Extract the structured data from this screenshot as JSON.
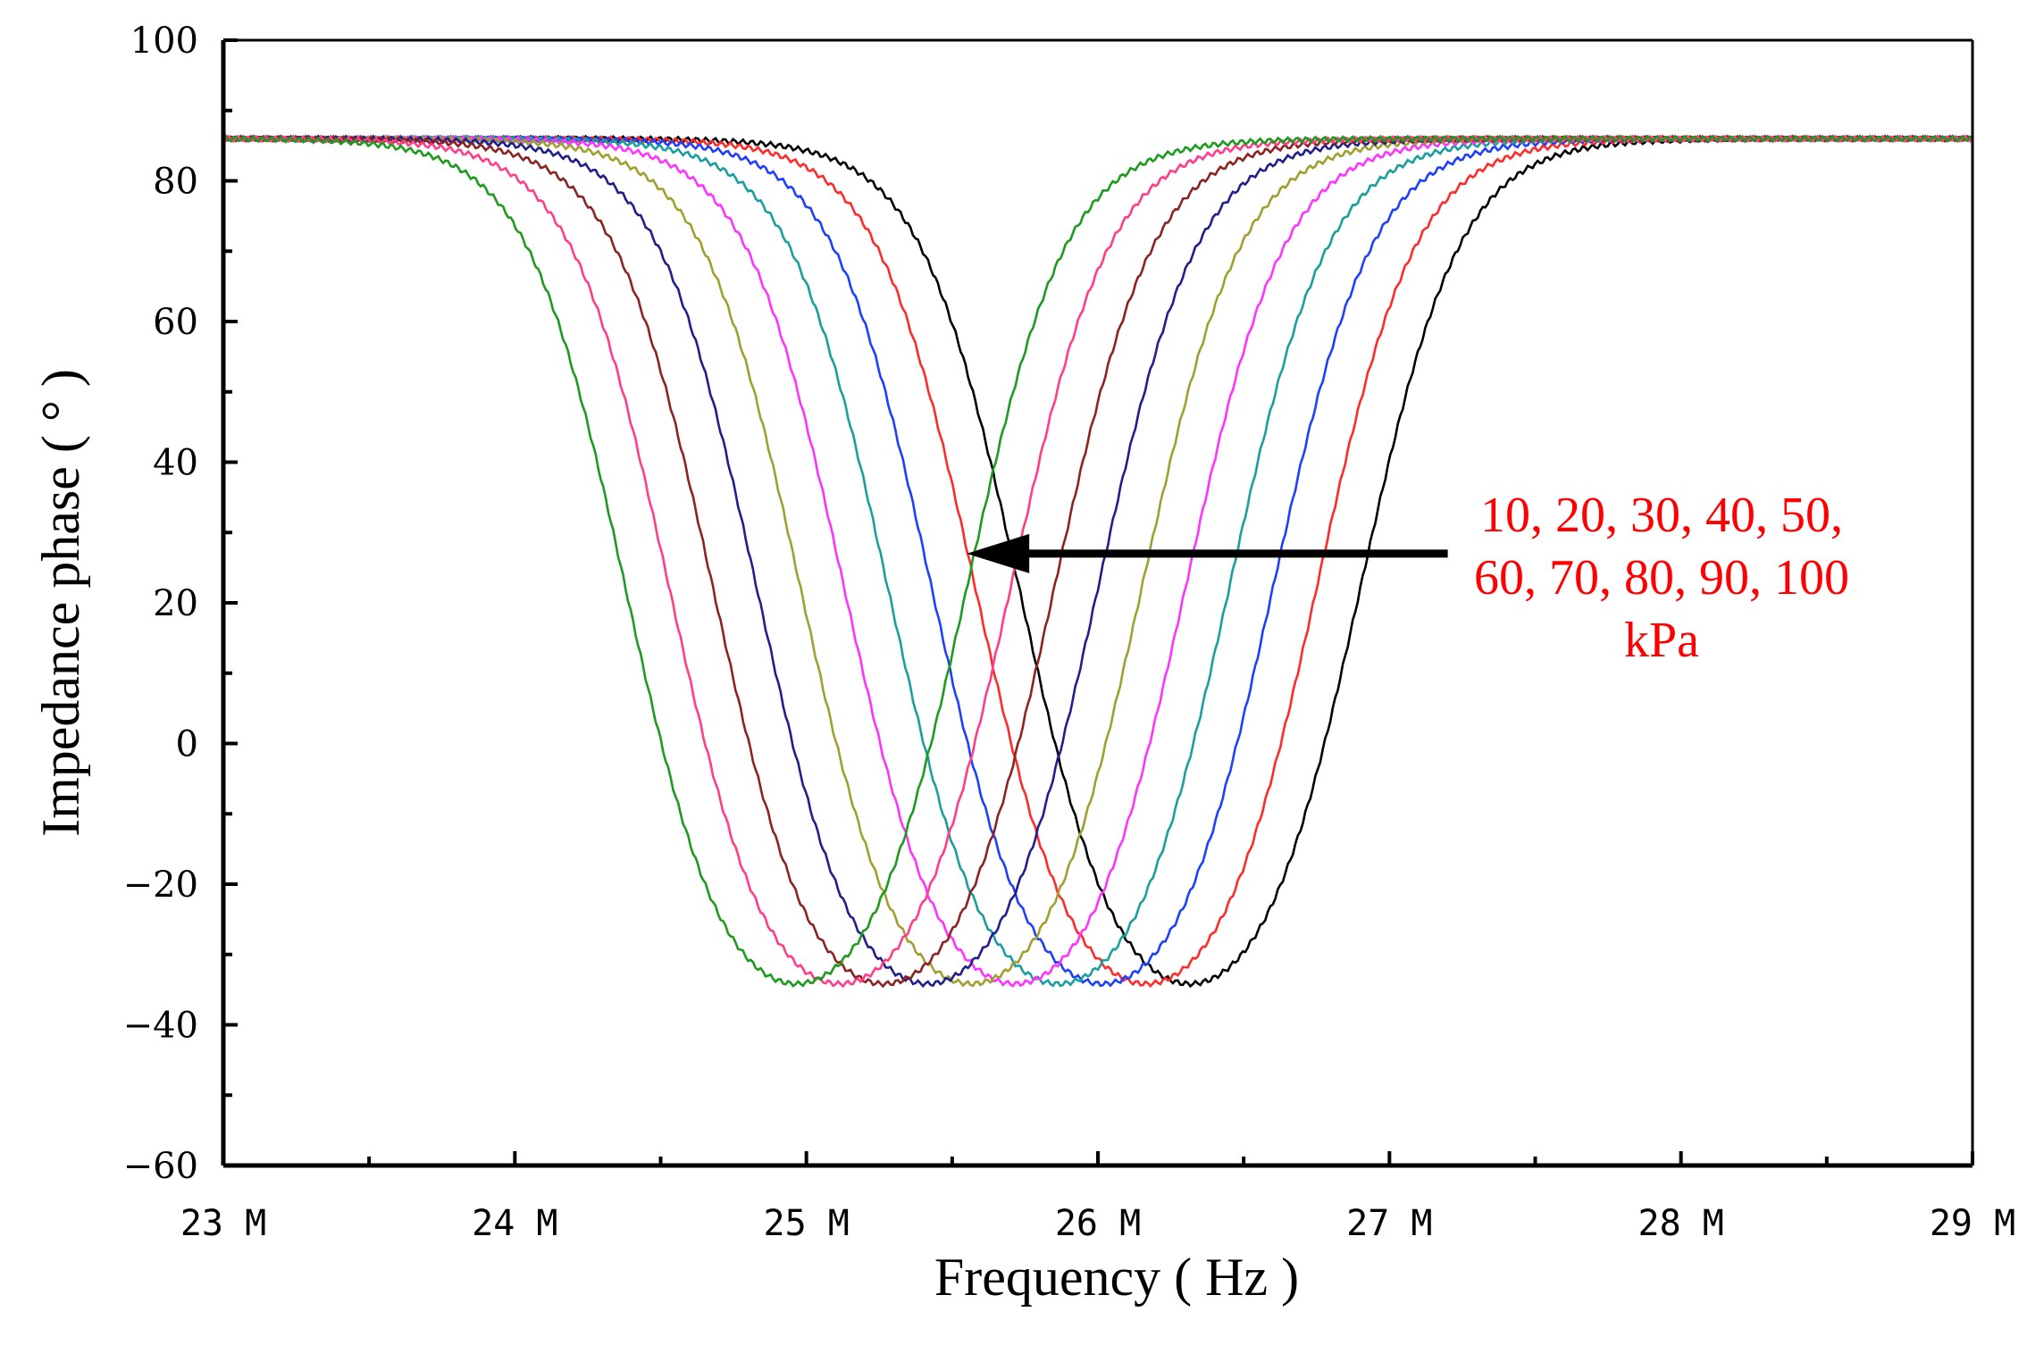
{
  "chart_data": {
    "type": "line",
    "title": "",
    "xlabel": "Frequency ( Hz )",
    "ylabel": "Impedance phase ( ° )",
    "xlim": [
      23,
      29
    ],
    "ylim": [
      -60,
      100
    ],
    "x_ticks": [
      23,
      24,
      25,
      26,
      27,
      28,
      29
    ],
    "x_tick_labels": [
      "23 M",
      "24 M",
      "25 M",
      "26 M",
      "27 M",
      "28 M",
      "29 M"
    ],
    "y_ticks": [
      -60,
      -40,
      -20,
      0,
      20,
      40,
      60,
      80,
      100
    ],
    "y_tick_labels": [
      "−60",
      "−40",
      "−20",
      "0",
      "20",
      "40",
      "60",
      "80",
      "100"
    ],
    "grid": false,
    "curve_model": {
      "shape": "phase notch (two sigmoid edges)",
      "baseline_deg": 86,
      "min_deg": -42,
      "edge_width_mhz": 0.17
    },
    "series": [
      {
        "name": "10 kPa",
        "color": "#000000",
        "left_edge_mhz": 25.73,
        "right_edge_mhz": 26.9
      },
      {
        "name": "20 kPa",
        "color": "#ff2a2a",
        "left_edge_mhz": 25.58,
        "right_edge_mhz": 26.75
      },
      {
        "name": "30 kPa",
        "color": "#1f3fff",
        "left_edge_mhz": 25.43,
        "right_edge_mhz": 26.6
      },
      {
        "name": "40 kPa",
        "color": "#1a9e9e",
        "left_edge_mhz": 25.28,
        "right_edge_mhz": 26.45
      },
      {
        "name": "50 kPa",
        "color": "#ff33ff",
        "left_edge_mhz": 25.13,
        "right_edge_mhz": 26.3
      },
      {
        "name": "60 kPa",
        "color": "#a0a030",
        "left_edge_mhz": 24.98,
        "right_edge_mhz": 26.15
      },
      {
        "name": "70 kPa",
        "color": "#20208c",
        "left_edge_mhz": 24.83,
        "right_edge_mhz": 26.0
      },
      {
        "name": "80 kPa",
        "color": "#8b2323",
        "left_edge_mhz": 24.68,
        "right_edge_mhz": 25.85
      },
      {
        "name": "90 kPa",
        "color": "#ff3d8a",
        "left_edge_mhz": 24.53,
        "right_edge_mhz": 25.7
      },
      {
        "name": "100 kPa",
        "color": "#1e9a1e",
        "left_edge_mhz": 24.38,
        "right_edge_mhz": 25.55
      }
    ],
    "annotation": {
      "lines": [
        "10, 20, 30, 40, 50,",
        "60, 70, 80, 90, 100",
        "kPa"
      ],
      "color": "#ff0000",
      "arrow_from": {
        "x": 27.2,
        "y": 27
      },
      "arrow_to": {
        "x": 25.55,
        "y": 27
      }
    }
  }
}
